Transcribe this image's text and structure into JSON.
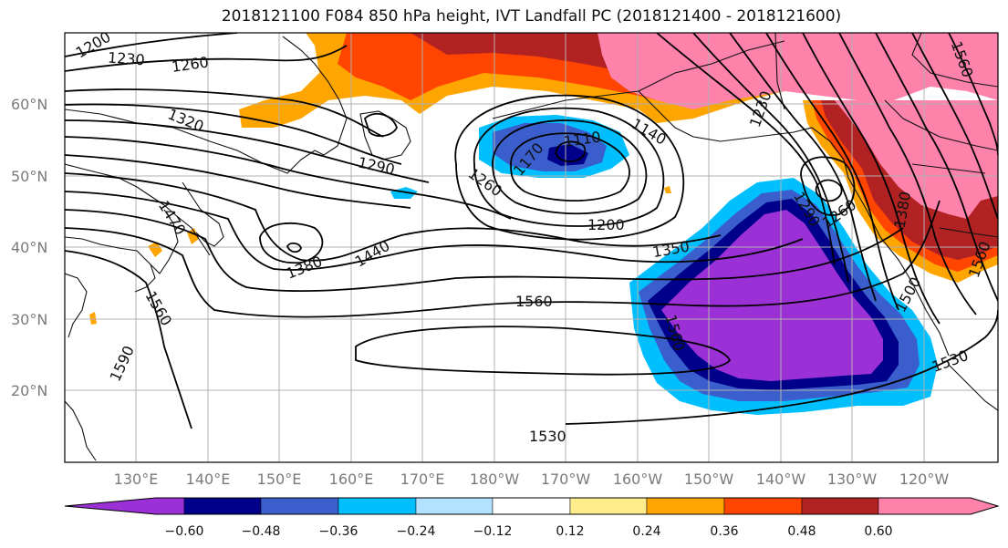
{
  "title": "2018121100 F084 850 hPa height, IVT Landfall PC (2018121400 - 2018121600)",
  "map": {
    "lat_labels": [
      "60°N",
      "50°N",
      "40°N",
      "30°N",
      "20°N"
    ],
    "lon_labels": [
      "130°E",
      "140°E",
      "150°E",
      "160°E",
      "170°E",
      "180°W",
      "170°W",
      "160°W",
      "150°W",
      "140°W",
      "130°W",
      "120°W"
    ],
    "contour_labels": [
      "1200",
      "1230",
      "1260",
      "1320",
      "1290",
      "1110",
      "1170",
      "1140",
      "1260",
      "1200",
      "1230",
      "1290",
      "1350",
      "1380",
      "1440",
      "1470",
      "1380",
      "1560",
      "1590",
      "1560",
      "1530",
      "1530",
      "1500",
      "1560",
      "1260",
      "1560",
      "1560"
    ]
  },
  "colorbar": {
    "tick_labels": [
      "−0.60",
      "−0.48",
      "−0.36",
      "−0.24",
      "−0.12",
      "0.12",
      "0.24",
      "0.36",
      "0.48",
      "0.60"
    ],
    "colors": [
      "#9b30d6",
      "#00008b",
      "#3a5fcd",
      "#00bfff",
      "#b2e2ff",
      "#ffffff",
      "#ffec8b",
      "#ffa500",
      "#ff4500",
      "#b22222",
      "#ff82ab"
    ]
  }
}
